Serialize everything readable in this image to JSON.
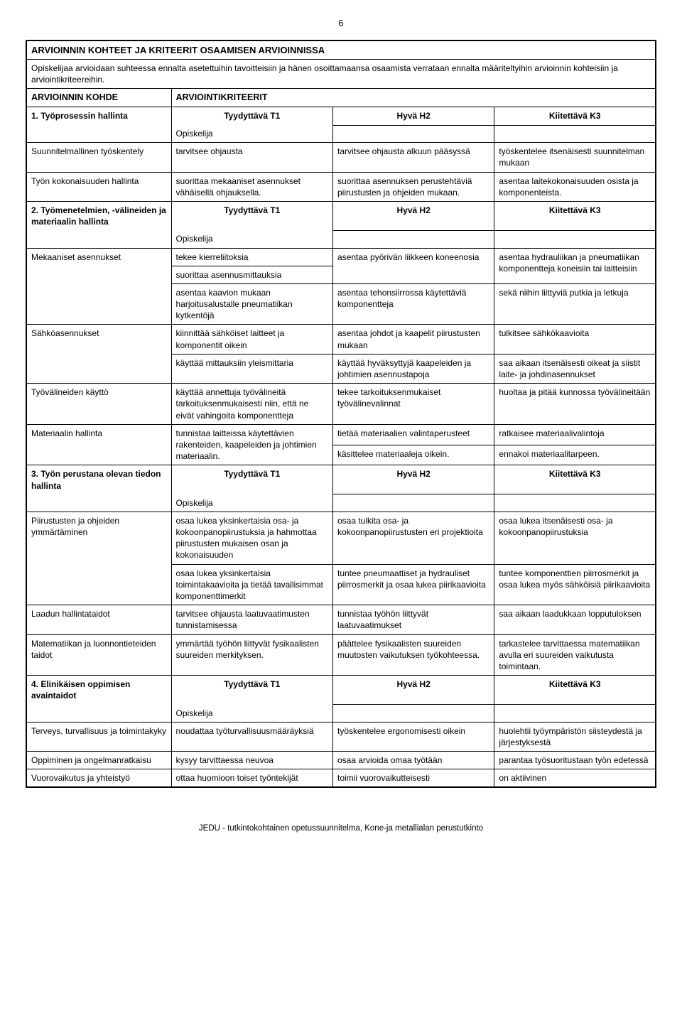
{
  "page_number": "6",
  "title": "ARVIOINNIN KOHTEET JA KRITEERIT OSAAMISEN ARVIOINNISSA",
  "intro": "Opiskelijaa arvioidaan suhteessa ennalta asetettuihin tavoitteisiin ja hänen osoittamaansa osaamista verrataan ennalta määriteltyihin arvioinnin kohteisiin ja arviointikriteereihin.",
  "labels": {
    "kohde": "ARVIOINNIN KOHDE",
    "kriteerit": "ARVIOINTIKRITEERIT",
    "t1": "Tyydyttävä T1",
    "h2": "Hyvä H2",
    "k3": "Kiitettävä K3",
    "opiskelija": "Opiskelija"
  },
  "sec1": {
    "head": "1. Työprosessin hallinta",
    "rows": [
      {
        "a": "Suunnitelmallinen työskentely",
        "b": "tarvitsee ohjausta",
        "c": "tarvitsee ohjausta alkuun pääsyssä",
        "d": "työskentelee itsenäisesti suunnitelman mukaan"
      },
      {
        "a": "Työn kokonaisuuden hallinta",
        "b": "suorittaa mekaaniset asennukset vähäisellä ohjauksella.",
        "c": "suorittaa asennuksen perustehtäviä piirustusten ja ohjeiden mukaan.",
        "d": "asentaa laitekokonaisuuden osista ja komponenteista."
      }
    ]
  },
  "sec2": {
    "head": "2. Työmenetelmien, -välineiden ja materiaalin hallinta",
    "rows": [
      {
        "a": "Mekaaniset asennukset",
        "b1": "tekee kierreliitoksia",
        "b2": "suorittaa asennusmittauksia",
        "b3": "asentaa kaavion mukaan harjoitusalustalle pneumatiikan kytkentöjä",
        "c12": "asentaa pyörivän liikkeen koneenosia",
        "c3": "asentaa tehonsiirrossa käytettäviä komponentteja",
        "d12": "asentaa hydrauliikan ja pneumatiikan komponentteja koneisiin tai laitteisiin",
        "d3": "sekä niihin liittyviä putkia ja letkuja"
      },
      {
        "a": "Sähköasennukset",
        "b1": "kiinnittää sähköiset laitteet ja komponentit oikein",
        "b2": "käyttää mittauksiin yleismittaria",
        "c1": "asentaa johdot ja kaapelit piirustusten mukaan",
        "c2": "käyttää hyväksyttyjä kaapeleiden ja johtimien asennustapoja",
        "d1": "tulkitsee sähkökaavioita",
        "d2": "saa aikaan itsenäisesti oikeat ja siistit laite- ja johdinasennukset"
      },
      {
        "a": "Työvälineiden käyttö",
        "b": "käyttää annettuja työvälineitä tarkoituksenmukaisesti niin, että ne eivät vahingoita komponentteja",
        "c": "tekee tarkoituksenmukaiset työvälinevalinnat",
        "d": "huoltaa ja pitää kunnossa työvälineitään"
      },
      {
        "a": "Materiaalin hallinta",
        "b": "tunnistaa laitteissa käytettävien rakenteiden, kaapeleiden ja johtimien materiaalin.",
        "c1": "tietää materiaalien valintaperusteet",
        "c2": "käsittelee materiaaleja oikein.",
        "d1": "ratkaisee materiaalivalintoja",
        "d2": "ennakoi materiaalitarpeen."
      }
    ]
  },
  "sec3": {
    "head": "3. Työn perustana olevan tiedon hallinta",
    "rows": [
      {
        "a": "Piirustusten ja ohjeiden ymmärtäminen",
        "b1": "osaa lukea yksinkertaisia osa- ja kokoonpanopiirustuksia ja hahmottaa piirustusten mukaisen osan ja kokonaisuuden",
        "b2": "osaa lukea yksinkertaisia toimintakaavioita ja tietää tavallisimmat komponenttimerkit",
        "c1": "osaa tulkita osa- ja kokoonpanopiirustusten eri projektioita",
        "c2": "tuntee pneumaattiset ja hydrauliset piirrosmerkit ja osaa lukea piirikaavioita",
        "d1": "osaa lukea itsenäisesti osa- ja kokoonpanopiirustuksia",
        "d2": "tuntee komponenttien piirrosmerkit ja osaa lukea myös sähköisiä piirikaavioita"
      },
      {
        "a": "Laadun hallintataidot",
        "b": "tarvitsee ohjausta laatuvaatimusten tunnistamisessa",
        "c": "tunnistaa työhön liittyvät laatuvaatimukset",
        "d": "saa aikaan laadukkaan lopputuloksen"
      },
      {
        "a": "Matematiikan ja luonnontieteiden taidot",
        "b": "ymmärtää työhön liittyvät fysikaalisten suureiden merkityksen.",
        "c": "päättelee fysikaalisten suureiden muutosten vaikutuksen työkohteessa.",
        "d": "tarkastelee tarvittaessa matematiikan avulla eri suureiden vaikutusta toimintaan."
      }
    ]
  },
  "sec4": {
    "head": "4. Elinikäisen oppimisen avaintaidot",
    "rows": [
      {
        "a": "Terveys, turvallisuus ja toimintakyky",
        "b": "noudattaa työturvallisuusmääräyksiä",
        "c": "työskentelee ergonomisesti oikein",
        "d": "huolehtii työympäristön siisteydestä ja järjestyksestä"
      },
      {
        "a": "Oppiminen ja ongelmanratkaisu",
        "b": "kysyy tarvittaessa neuvoa",
        "c": "osaa arvioida omaa työtään",
        "d": "parantaa työsuoritustaan työn edetessä"
      },
      {
        "a": "Vuorovaikutus ja yhteistyö",
        "b": "ottaa huomioon toiset työntekijät",
        "c": "toimii vuorovaikutteisesti",
        "d": "on aktiivinen"
      }
    ]
  },
  "footer": "JEDU - tutkintokohtainen opetussuunnitelma, Kone-ja metallialan perustutkinto"
}
